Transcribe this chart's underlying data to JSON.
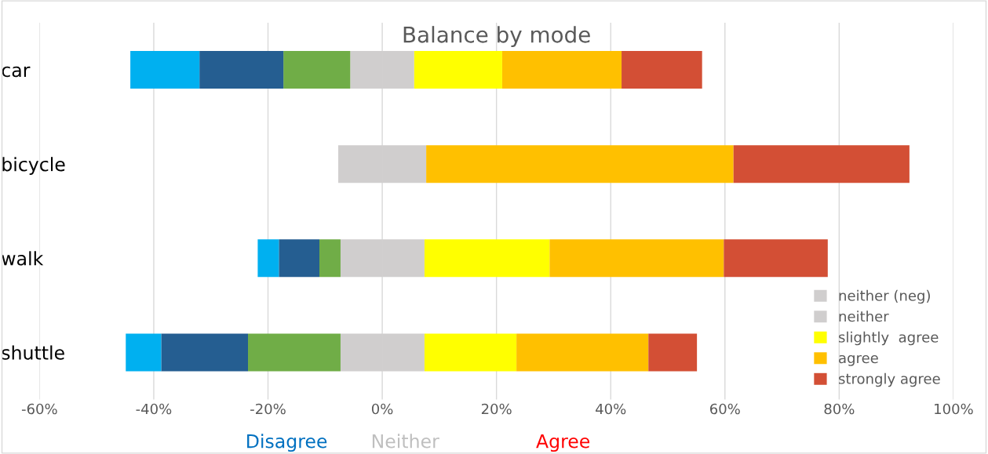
{
  "chart_data": {
    "type": "bar",
    "orientation": "horizontal",
    "stacked": true,
    "title": "Balance by mode",
    "categories": [
      "car",
      "bicycle",
      "walk",
      "shuttle"
    ],
    "series": [
      {
        "name": "neither (neg)",
        "color": "#d0cece",
        "values": [
          -5.6,
          -7.7,
          -7.3,
          -7.3
        ]
      },
      {
        "color": "#70ad47",
        "values": [
          -11.7,
          0,
          -3.7,
          -16.2
        ]
      },
      {
        "color": "#255e91",
        "values": [
          -14.7,
          0,
          -7.1,
          -15.2
        ]
      },
      {
        "color": "#00b0f0",
        "values": [
          -12.1,
          0,
          -3.7,
          -6.2
        ]
      },
      {
        "name": "neither",
        "color": "#d0cece",
        "values": [
          5.6,
          7.7,
          7.4,
          7.4
        ]
      },
      {
        "name": "slightly  agree",
        "color": "#ffff00",
        "values": [
          15.4,
          0,
          21.9,
          16.1
        ]
      },
      {
        "name": "agree",
        "color": "#ffc000",
        "values": [
          20.9,
          53.8,
          30.5,
          23.1
        ]
      },
      {
        "name": "strongly agree",
        "color": "#d34f35",
        "values": [
          14.1,
          30.8,
          18.2,
          8.5
        ]
      }
    ],
    "xlim": [
      -60,
      100
    ],
    "xticks": [
      {
        "value": -60,
        "label": "-60%"
      },
      {
        "value": -40,
        "label": "-40%"
      },
      {
        "value": -20,
        "label": "-20%"
      },
      {
        "value": 0,
        "label": "0%"
      },
      {
        "value": 20,
        "label": "20%"
      },
      {
        "value": 40,
        "label": "40%"
      },
      {
        "value": 60,
        "label": "60%"
      },
      {
        "value": 80,
        "label": "80%"
      },
      {
        "value": 100,
        "label": "100%"
      }
    ],
    "grid": "x",
    "legend": "bottom right",
    "annotations": [
      "Disagree",
      "Neither",
      "Agree"
    ]
  }
}
